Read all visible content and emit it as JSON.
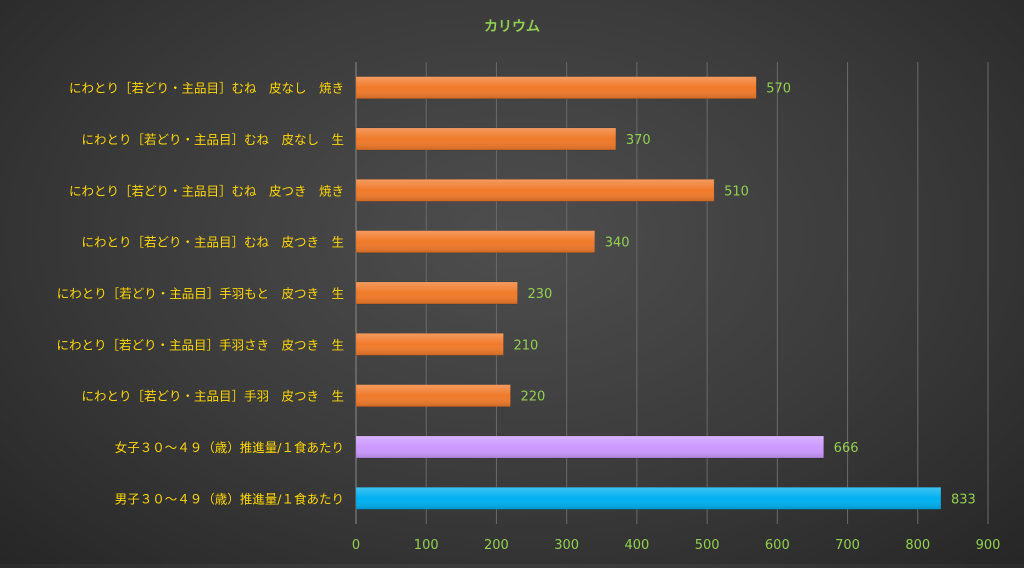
{
  "chart_data": {
    "type": "bar",
    "orientation": "horizontal",
    "title": "カリウム",
    "categories": [
      "にわとり［若どり・主品目］むね　皮なし　焼き",
      "にわとり［若どり・主品目］むね　皮なし　生",
      "にわとり［若どり・主品目］むね　皮つき　焼き",
      "にわとり［若どり・主品目］むね　皮つき　生",
      "にわとり［若どり・主品目］手羽もと　皮つき　生",
      "にわとり［若どり・主品目］手羽さき　皮つき　生",
      "にわとり［若どり・主品目］手羽　皮つき　生",
      "女子３０～４９（歳）推進量/１食あたり",
      "男子３０～４９（歳）推進量/１食あたり"
    ],
    "values": [
      570,
      370,
      510,
      340,
      230,
      210,
      220,
      666,
      833
    ],
    "bar_colors": [
      "#f07a2a",
      "#f07a2a",
      "#f07a2a",
      "#f07a2a",
      "#f07a2a",
      "#f07a2a",
      "#f07a2a",
      "#cc99ff",
      "#00b0f0"
    ],
    "xlim": [
      0,
      900
    ],
    "xticks": [
      0,
      100,
      200,
      300,
      400,
      500,
      600,
      700,
      800,
      900
    ],
    "grid": true,
    "legend": "none",
    "colors": {
      "title": "#92d050",
      "category_label": "#ffd700",
      "value_label": "#92d050",
      "tick_label": "#92d050",
      "gridline": "#6a6a6a"
    }
  }
}
